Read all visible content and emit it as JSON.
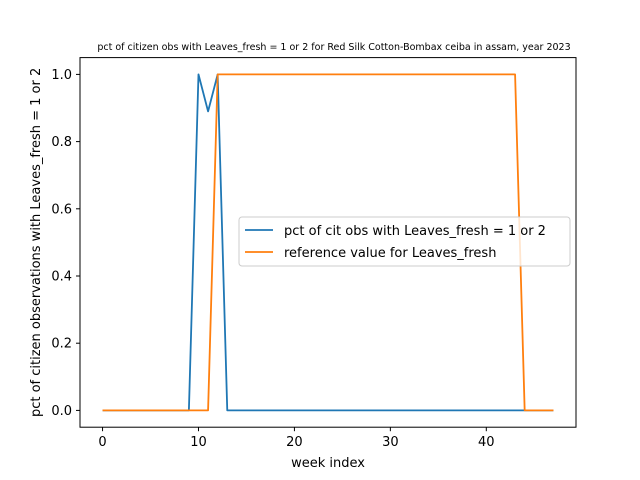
{
  "chart_data": {
    "type": "line",
    "title": "pct of citizen obs with Leaves_fresh = 1 or 2 for Red Silk Cotton-Bombax ceiba in assam, year 2023",
    "xlabel": "week index",
    "ylabel": "pct of citizen observations with Leaves_fresh = 1 or 2",
    "xlim": [
      -2.35,
      49.35
    ],
    "ylim": [
      -0.05,
      1.05
    ],
    "xticks": [
      0,
      10,
      20,
      30,
      40
    ],
    "yticks": [
      0.0,
      0.2,
      0.4,
      0.6,
      0.8,
      1.0
    ],
    "xtick_labels": [
      "0",
      "10",
      "20",
      "30",
      "40"
    ],
    "ytick_labels": [
      "0.0",
      "0.2",
      "0.4",
      "0.6",
      "0.8",
      "1.0"
    ],
    "legend_position": "center-right",
    "grid": false,
    "series": [
      {
        "name": "pct of cit obs with Leaves_fresh = 1 or 2",
        "color": "#1f77b4",
        "x": [
          0,
          1,
          2,
          3,
          4,
          5,
          6,
          7,
          8,
          9,
          10,
          11,
          12,
          13,
          14,
          15,
          16,
          17,
          18,
          19,
          20,
          21,
          22,
          23,
          24,
          25,
          26,
          27,
          28,
          29,
          30,
          31,
          32,
          33,
          34,
          35,
          36,
          37,
          38,
          39,
          40,
          41,
          42,
          43,
          44,
          45,
          46,
          47
        ],
        "y": [
          0,
          0,
          0,
          0,
          0,
          0,
          0,
          0,
          0,
          0,
          1.0,
          0.89,
          1.0,
          0,
          0,
          0,
          0,
          0,
          0,
          0,
          0,
          0,
          0,
          0,
          0,
          0,
          0,
          0,
          0,
          0,
          0,
          0,
          0,
          0,
          0,
          0,
          0,
          0,
          0,
          0,
          0,
          0,
          0,
          0,
          0,
          0,
          0,
          0
        ]
      },
      {
        "name": "reference value for Leaves_fresh",
        "color": "#ff7f0e",
        "x": [
          0,
          1,
          2,
          3,
          4,
          5,
          6,
          7,
          8,
          9,
          10,
          11,
          12,
          13,
          14,
          15,
          16,
          17,
          18,
          19,
          20,
          21,
          22,
          23,
          24,
          25,
          26,
          27,
          28,
          29,
          30,
          31,
          32,
          33,
          34,
          35,
          36,
          37,
          38,
          39,
          40,
          41,
          42,
          43,
          44,
          45,
          46,
          47
        ],
        "y": [
          0,
          0,
          0,
          0,
          0,
          0,
          0,
          0,
          0,
          0,
          0,
          0,
          1,
          1,
          1,
          1,
          1,
          1,
          1,
          1,
          1,
          1,
          1,
          1,
          1,
          1,
          1,
          1,
          1,
          1,
          1,
          1,
          1,
          1,
          1,
          1,
          1,
          1,
          1,
          1,
          1,
          1,
          1,
          1,
          0,
          0,
          0,
          0
        ]
      }
    ]
  }
}
